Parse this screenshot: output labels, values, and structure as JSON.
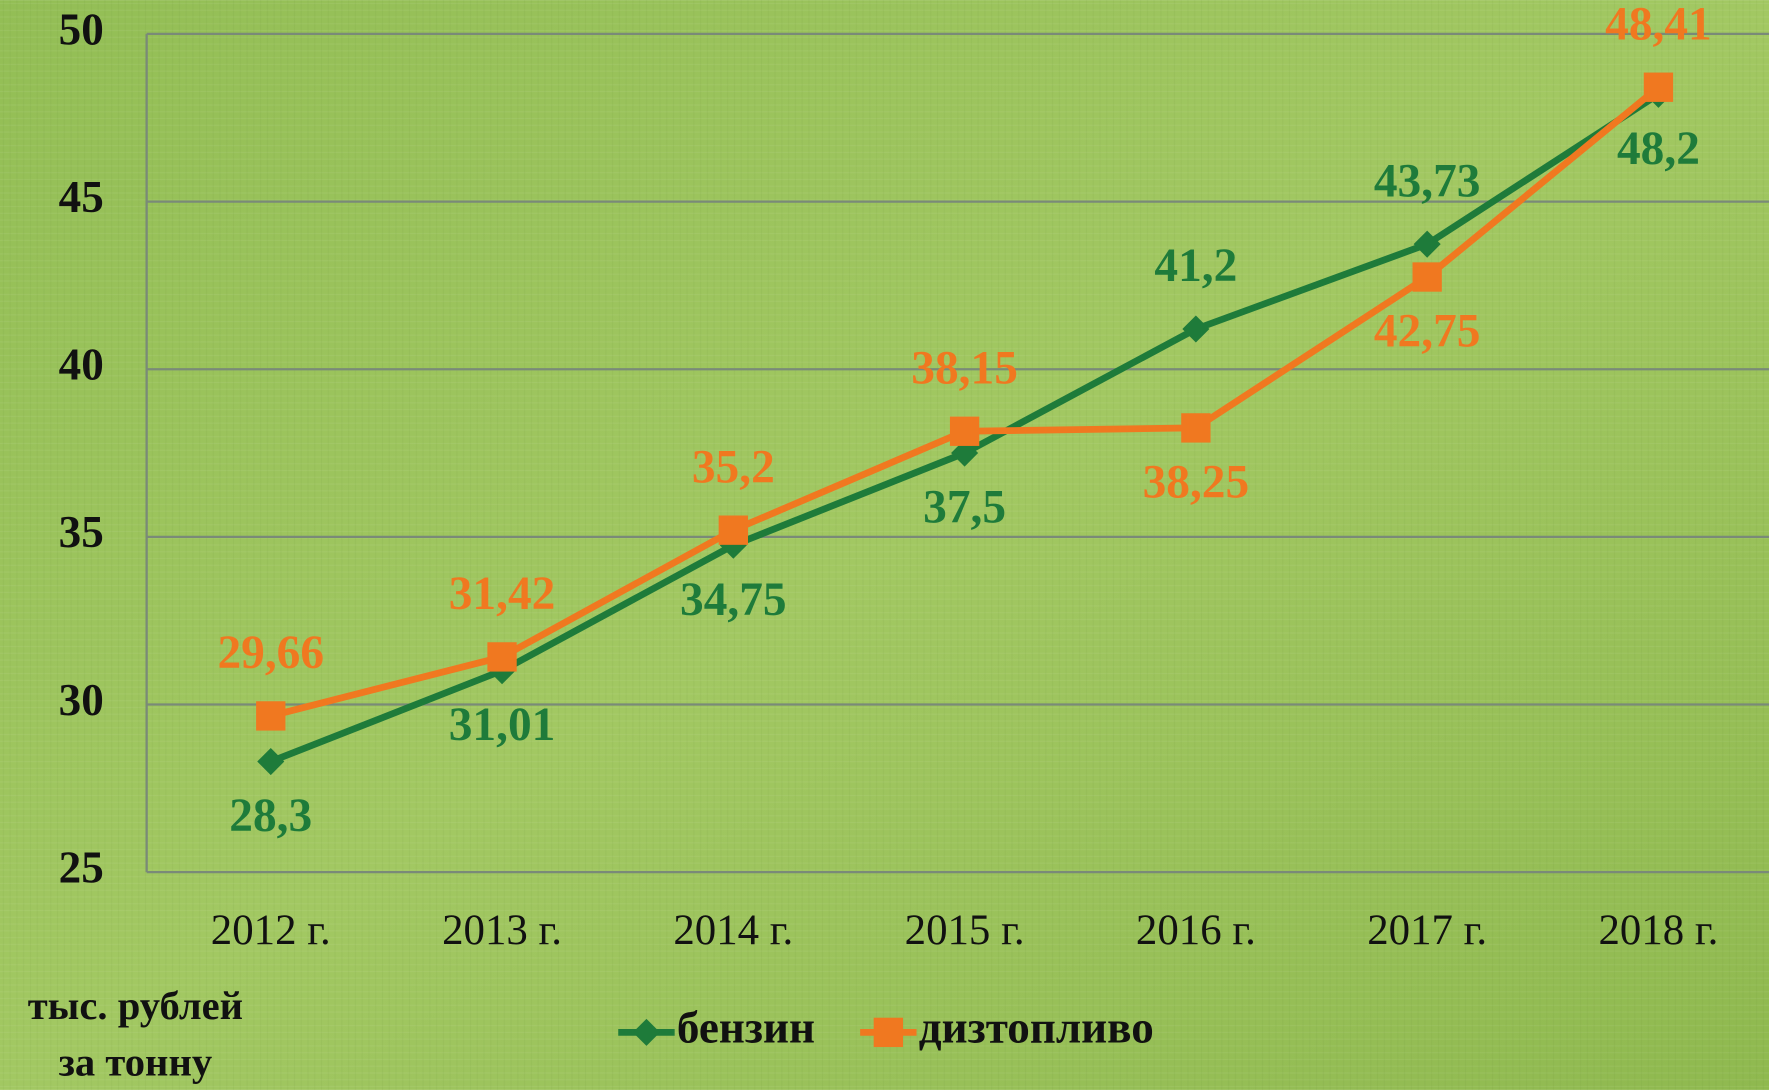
{
  "chart_data": {
    "type": "line",
    "categories": [
      "2012 г.",
      "2013 г.",
      "2014 г.",
      "2015 г.",
      "2016 г.",
      "2017 г.",
      "2018 г."
    ],
    "series": [
      {
        "name": "бензин",
        "color": "#1e7b3a",
        "marker": "diamond",
        "values": [
          28.3,
          31.01,
          34.75,
          37.5,
          41.2,
          43.73,
          48.2
        ],
        "value_labels": [
          "28,3",
          "31,01",
          "34,75",
          "37,5",
          "41,2",
          "43,73",
          "48,2"
        ]
      },
      {
        "name": "дизтопливо",
        "color": "#f07820",
        "marker": "square",
        "values": [
          29.66,
          31.42,
          35.2,
          38.15,
          38.25,
          42.75,
          48.41
        ],
        "value_labels": [
          "29,66",
          "31,42",
          "35,2",
          "38,15",
          "38,25",
          "42,75",
          "48,41"
        ]
      }
    ],
    "ylim": [
      25,
      50
    ],
    "yticks": [
      25,
      30,
      35,
      40,
      45,
      50
    ],
    "grid": true,
    "legend": "bottom",
    "y_label": [
      "тыс. рублей",
      "за тонну"
    ]
  }
}
